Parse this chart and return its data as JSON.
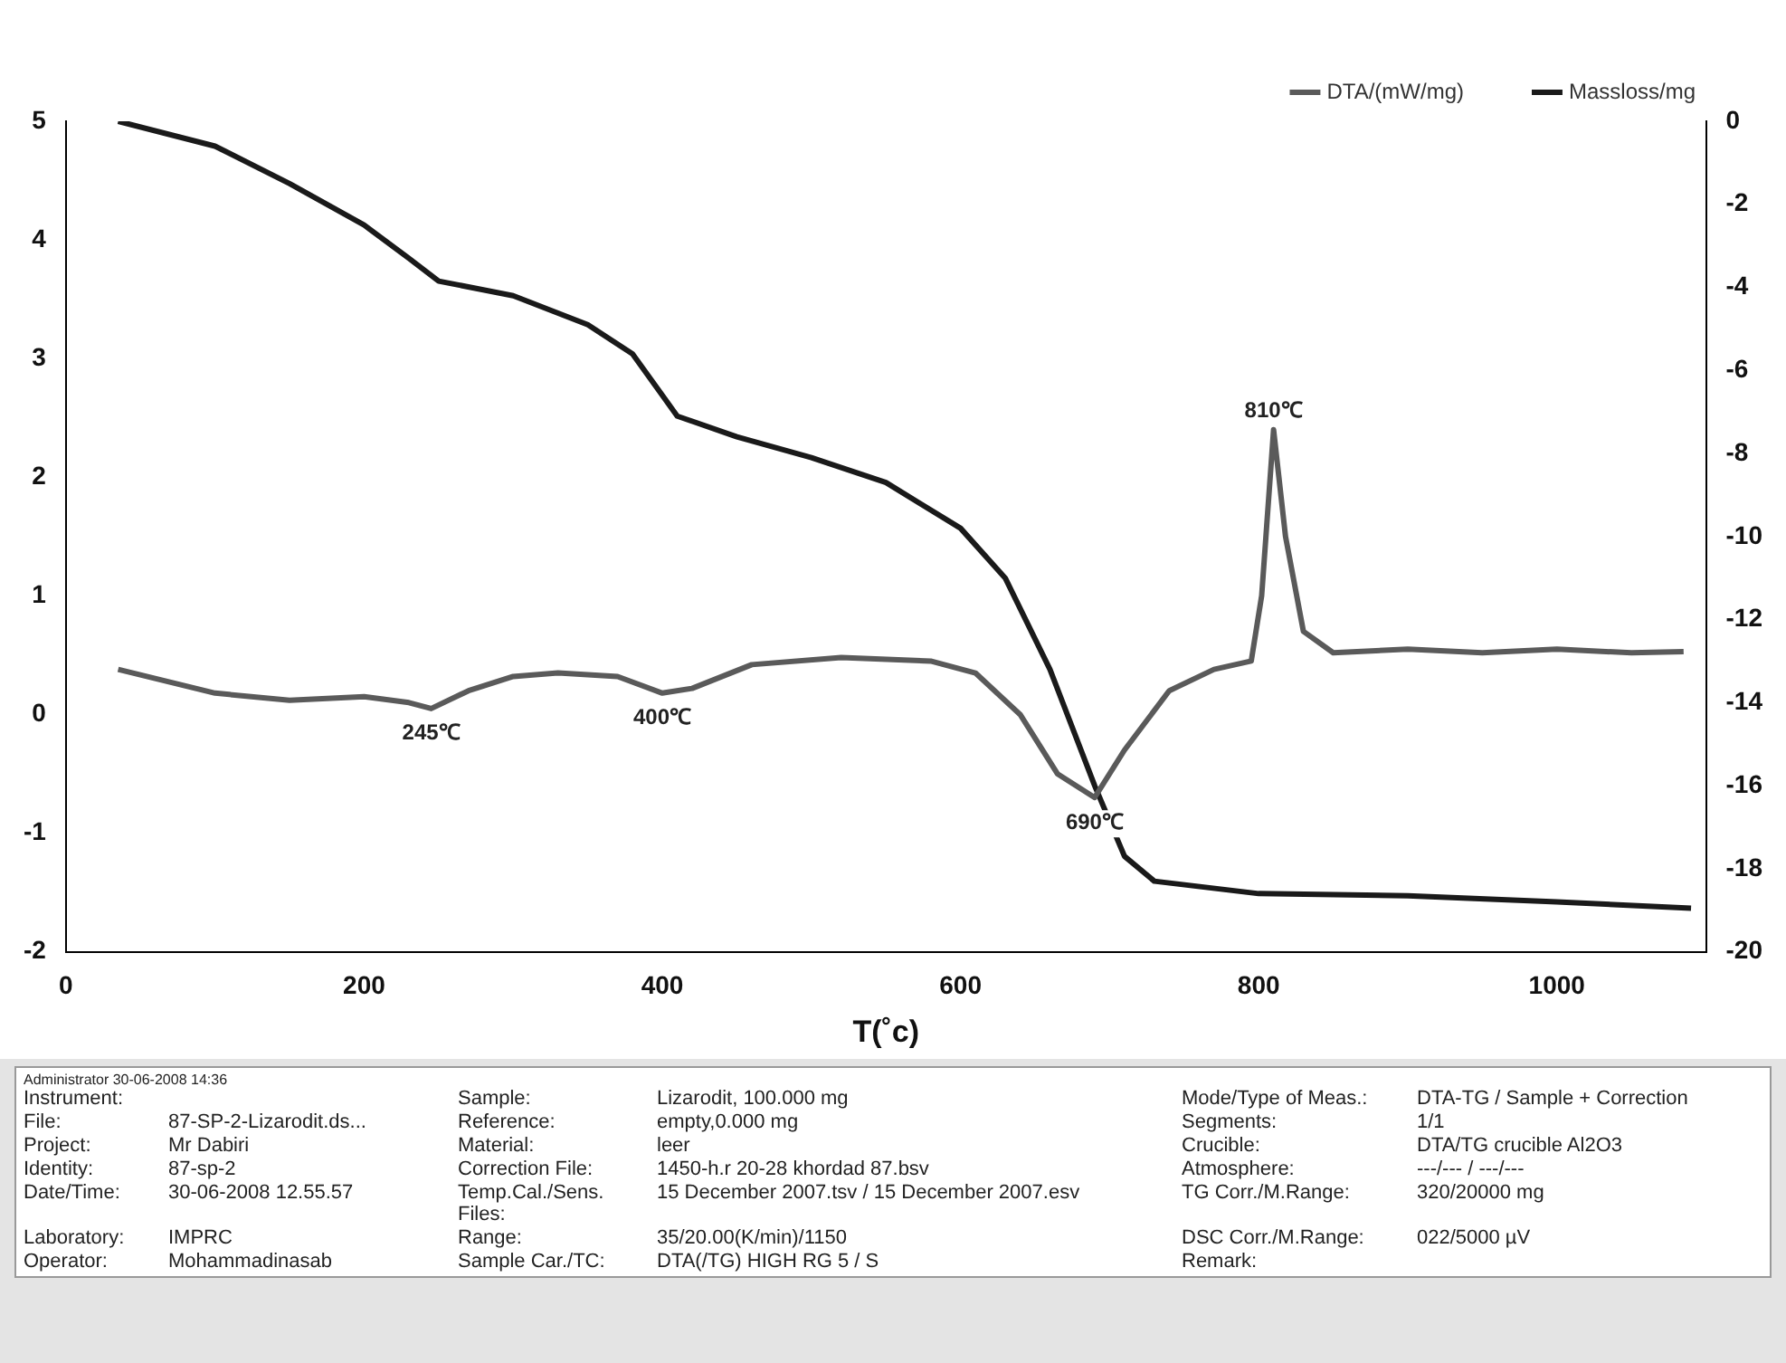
{
  "chart_data": {
    "type": "line",
    "xlabel": "T(˚c)",
    "legend": "top right",
    "xlim": [
      0,
      1100
    ],
    "xticks": [
      0,
      200,
      400,
      600,
      800,
      1000
    ],
    "ylim": [
      -2,
      5
    ],
    "yticks": [
      -2,
      -1,
      0,
      1,
      2,
      3,
      4,
      5
    ],
    "y2lim": [
      -20,
      0
    ],
    "y2ticks": [
      -20,
      -18,
      -16,
      -14,
      -12,
      -10,
      -8,
      -6,
      -4,
      -2,
      0
    ],
    "grid": false,
    "marker": "none",
    "series": [
      {
        "name": "DTA/(mW/mg)",
        "color": "#5a5a5a",
        "x": [
          35,
          100,
          150,
          200,
          230,
          245,
          270,
          300,
          330,
          370,
          400,
          420,
          460,
          520,
          580,
          610,
          640,
          665,
          690,
          710,
          740,
          770,
          795,
          802,
          810,
          818,
          830,
          850,
          900,
          950,
          1000,
          1050,
          1085
        ],
        "values": [
          0.38,
          0.18,
          0.12,
          0.15,
          0.1,
          0.05,
          0.2,
          0.32,
          0.35,
          0.32,
          0.18,
          0.22,
          0.42,
          0.48,
          0.45,
          0.35,
          0.0,
          -0.5,
          -0.7,
          -0.3,
          0.2,
          0.38,
          0.45,
          1.0,
          2.4,
          1.5,
          0.7,
          0.52,
          0.55,
          0.52,
          0.55,
          0.52,
          0.53
        ]
      },
      {
        "name": "Massloss/mg",
        "color": "#1a1a1a",
        "axis": "y2",
        "x": [
          35,
          100,
          150,
          200,
          230,
          250,
          300,
          350,
          380,
          400,
          410,
          450,
          500,
          550,
          600,
          630,
          660,
          690,
          710,
          730,
          800,
          900,
          1000,
          1090
        ],
        "values": [
          0,
          -0.6,
          -1.5,
          -2.5,
          -3.3,
          -3.85,
          -4.2,
          -4.9,
          -5.6,
          -6.6,
          -7.1,
          -7.6,
          -8.1,
          -8.7,
          -9.8,
          -11,
          -13.2,
          -16,
          -17.7,
          -18.3,
          -18.6,
          -18.65,
          -18.8,
          -18.95
        ]
      }
    ],
    "annotations": [
      {
        "text": "245℃",
        "x": 245,
        "y": 0.05
      },
      {
        "text": "400℃",
        "x": 400,
        "y": 0.18
      },
      {
        "text": "690℃",
        "x": 690,
        "y": -0.7
      },
      {
        "text": "810℃",
        "x": 810,
        "y": 2.4
      },
      "Administrator  30-06-2008 14:36",
      "Instrument:",
      "Sample:",
      "Lizarodit, 100.000 mg",
      "Mode/Type of Meas.:",
      "DTA-TG / Sample + Correction",
      "File:",
      "87-SP-2-Lizarodit.ds...",
      "Reference:",
      "empty,0.000 mg",
      "Segments:",
      "1/1",
      "Project:",
      "Mr Dabiri",
      "Material:",
      "leer",
      "Crucible:",
      "DTA/TG crucible Al2O3",
      "Identity:",
      "87-sp-2",
      "Correction File:",
      "1450-h.r 20-28 khordad 87.bsv",
      "Atmosphere:",
      "---/--- / ---/---",
      "Date/Time:",
      "30-06-2008 12.55.57",
      "Temp.Cal./Sens. Files:",
      "15 December 2007.tsv / 15 December 2007.esv",
      "TG Corr./M.Range:",
      "320/20000 mg",
      "Laboratory:",
      "IMPRC",
      "Range:",
      "35/20.00(K/min)/1150",
      "DSC Corr./M.Range:",
      "022/5000 µV",
      "Operator:",
      "Mohammadinasab",
      "Sample Car./TC:",
      "DTA(/TG) HIGH RG 5 / S",
      "Remark:"
    ]
  }
}
